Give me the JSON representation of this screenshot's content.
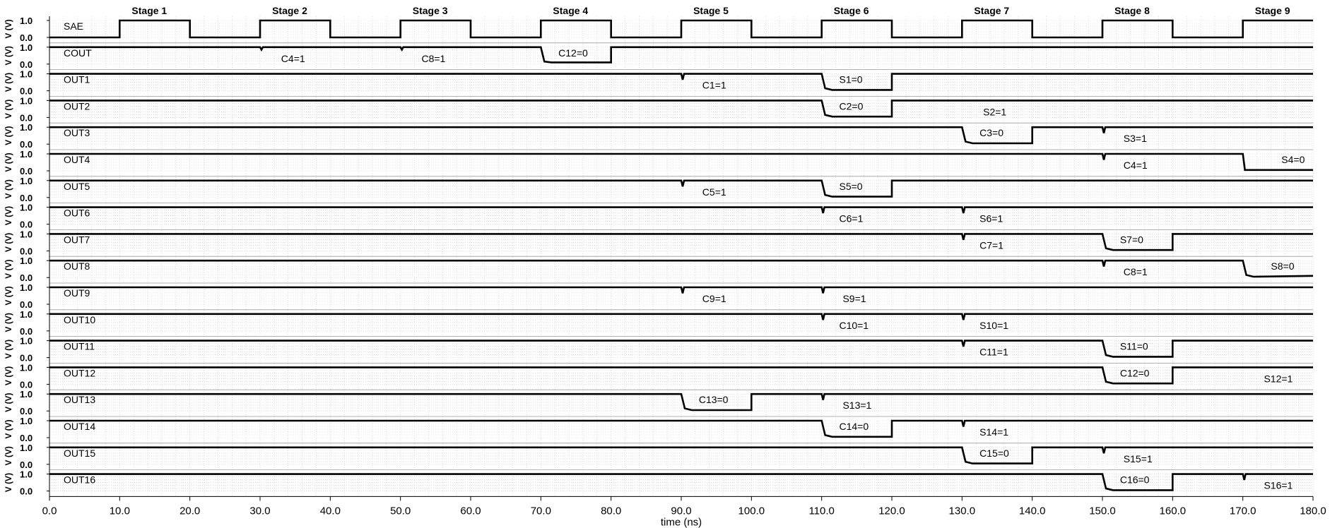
{
  "chart_data": {
    "type": "line",
    "xlabel": "time (ns)",
    "ylabel": "V (V)",
    "xlim": [
      0,
      180
    ],
    "x_ticks": [
      "0.0",
      "10.0",
      "20.0",
      "30.0",
      "40.0",
      "50.0",
      "60.0",
      "70.0",
      "80.0",
      "90.0",
      "100.0",
      "110.0",
      "120.0",
      "130.0",
      "140.0",
      "150.0",
      "160.0",
      "170.0",
      "180.0"
    ],
    "y_ticks": [
      "0.0",
      "1.0"
    ],
    "grid": true,
    "stages": [
      {
        "label": "Stage 1",
        "t": 10
      },
      {
        "label": "Stage 2",
        "t": 30
      },
      {
        "label": "Stage 3",
        "t": 50
      },
      {
        "label": "Stage 4",
        "t": 70
      },
      {
        "label": "Stage 5",
        "t": 90
      },
      {
        "label": "Stage 6",
        "t": 110
      },
      {
        "label": "Stage 7",
        "t": 130
      },
      {
        "label": "Stage 8",
        "t": 150
      },
      {
        "label": "Stage 9",
        "t": 170
      }
    ],
    "series": [
      {
        "name": "SAE",
        "x": [
          0,
          10,
          10,
          20,
          20,
          30,
          30,
          40,
          40,
          50,
          50,
          60,
          60,
          70,
          70,
          80,
          80,
          90,
          90,
          100,
          100,
          110,
          110,
          120,
          120,
          130,
          130,
          140,
          140,
          150,
          150,
          160,
          160,
          170,
          170,
          180
        ],
        "y": [
          0,
          0,
          1,
          1,
          0,
          0,
          1,
          1,
          0,
          0,
          1,
          1,
          0,
          0,
          1,
          1,
          0,
          0,
          1,
          1,
          0,
          0,
          1,
          1,
          0,
          0,
          1,
          1,
          0,
          0,
          1,
          1,
          0,
          0,
          1,
          1
        ],
        "labels": []
      },
      {
        "name": "COUT",
        "x": [
          0,
          30,
          30.2,
          30.4,
          50,
          50.2,
          50.4,
          70,
          70.5,
          71.5,
          80,
          80,
          180
        ],
        "y": [
          1,
          1,
          0.85,
          1,
          1,
          0.85,
          1,
          1,
          0.15,
          0.1,
          0.1,
          1,
          1
        ],
        "labels": [
          {
            "text": "C4=1",
            "t": 33
          },
          {
            "text": "C8=1",
            "t": 53
          },
          {
            "text": "C12=0",
            "t": 72.5,
            "pos": "mid"
          }
        ]
      },
      {
        "name": "OUT1",
        "x": [
          0,
          90,
          90.2,
          90.4,
          110,
          110.5,
          111.5,
          120,
          120,
          180
        ],
        "y": [
          1,
          1,
          0.65,
          1,
          1,
          0.15,
          0.05,
          0.05,
          1,
          1
        ],
        "labels": [
          {
            "text": "C1=1",
            "t": 93
          },
          {
            "text": "S1=0",
            "t": 112.5,
            "pos": "mid"
          }
        ]
      },
      {
        "name": "OUT2",
        "x": [
          0,
          110,
          110.5,
          111.5,
          120,
          120,
          180
        ],
        "y": [
          1,
          1,
          0.15,
          0.05,
          0.05,
          1,
          1
        ],
        "labels": [
          {
            "text": "C2=0",
            "t": 112.5,
            "pos": "mid"
          },
          {
            "text": "S2=1",
            "t": 133
          }
        ]
      },
      {
        "name": "OUT3",
        "x": [
          0,
          130,
          130.5,
          131.5,
          140,
          140,
          150,
          150.2,
          150.4,
          180
        ],
        "y": [
          1,
          1,
          0.15,
          0.05,
          0.05,
          1,
          1,
          0.65,
          1,
          1
        ],
        "labels": [
          {
            "text": "C3=0",
            "t": 132.5,
            "pos": "mid"
          },
          {
            "text": "S3=1",
            "t": 153
          }
        ]
      },
      {
        "name": "OUT4",
        "x": [
          0,
          150,
          150.2,
          150.4,
          170,
          170.3,
          180
        ],
        "y": [
          1,
          1,
          0.65,
          1,
          1,
          0.05,
          0.05
        ],
        "labels": [
          {
            "text": "C4=1",
            "t": 153
          },
          {
            "text": "S4=0",
            "t": 175.5,
            "pos": "mid"
          }
        ]
      },
      {
        "name": "OUT5",
        "x": [
          0,
          90,
          90.2,
          90.4,
          110,
          110.5,
          111.5,
          120,
          120,
          180
        ],
        "y": [
          1,
          1,
          0.65,
          1,
          1,
          0.15,
          0.05,
          0.05,
          1,
          1
        ],
        "labels": [
          {
            "text": "C5=1",
            "t": 93
          },
          {
            "text": "S5=0",
            "t": 112.5,
            "pos": "mid"
          }
        ]
      },
      {
        "name": "OUT6",
        "x": [
          0,
          110,
          110.2,
          110.4,
          130,
          130.2,
          130.4,
          180
        ],
        "y": [
          1,
          1,
          0.65,
          1,
          1,
          0.65,
          1,
          1
        ],
        "labels": [
          {
            "text": "C6=1",
            "t": 112.5
          },
          {
            "text": "S6=1",
            "t": 132.5
          }
        ]
      },
      {
        "name": "OUT7",
        "x": [
          0,
          130,
          130.2,
          130.4,
          150,
          150.5,
          151.5,
          160,
          160,
          180
        ],
        "y": [
          1,
          1,
          0.65,
          1,
          1,
          0.15,
          0.05,
          0.05,
          1,
          1
        ],
        "labels": [
          {
            "text": "C7=1",
            "t": 132.5
          },
          {
            "text": "S7=0",
            "t": 152.5,
            "pos": "mid"
          }
        ]
      },
      {
        "name": "OUT8",
        "x": [
          0,
          150,
          150.2,
          150.4,
          170,
          170.5,
          171.5,
          180
        ],
        "y": [
          1,
          1,
          0.65,
          1,
          1,
          0.15,
          0.05,
          0.1
        ],
        "labels": [
          {
            "text": "C8=1",
            "t": 153
          },
          {
            "text": "S8=0",
            "t": 174,
            "pos": "mid"
          }
        ]
      },
      {
        "name": "OUT9",
        "x": [
          0,
          90,
          90.2,
          90.4,
          110,
          110.2,
          110.4,
          180
        ],
        "y": [
          1,
          1,
          0.65,
          1,
          1,
          0.65,
          1,
          1
        ],
        "labels": [
          {
            "text": "C9=1",
            "t": 93
          },
          {
            "text": "S9=1",
            "t": 113
          }
        ]
      },
      {
        "name": "OUT10",
        "x": [
          0,
          110,
          110.2,
          110.4,
          130,
          130.2,
          130.4,
          180
        ],
        "y": [
          1,
          1,
          0.65,
          1,
          1,
          0.65,
          1,
          1
        ],
        "labels": [
          {
            "text": "C10=1",
            "t": 112.5
          },
          {
            "text": "S10=1",
            "t": 132.5
          }
        ]
      },
      {
        "name": "OUT11",
        "x": [
          0,
          130,
          130.2,
          130.4,
          150,
          150.5,
          151.5,
          160,
          160,
          180
        ],
        "y": [
          1,
          1,
          0.65,
          1,
          1,
          0.15,
          0.05,
          0.05,
          1,
          1
        ],
        "labels": [
          {
            "text": "C11=1",
            "t": 132.5
          },
          {
            "text": "S11=0",
            "t": 152.5,
            "pos": "mid"
          }
        ]
      },
      {
        "name": "OUT12",
        "x": [
          0,
          150,
          150.5,
          151.5,
          160,
          160,
          180
        ],
        "y": [
          1,
          1,
          0.15,
          0.05,
          0.05,
          1,
          1
        ],
        "labels": [
          {
            "text": "C12=0",
            "t": 152.5,
            "pos": "mid"
          },
          {
            "text": "S12=1",
            "t": 173
          }
        ]
      },
      {
        "name": "OUT13",
        "x": [
          0,
          90,
          90.5,
          91.5,
          100,
          100,
          110,
          110.2,
          110.4,
          180
        ],
        "y": [
          1,
          1,
          0.15,
          0.05,
          0.05,
          1,
          1,
          0.65,
          1,
          1
        ],
        "labels": [
          {
            "text": "C13=0",
            "t": 92.5,
            "pos": "mid"
          },
          {
            "text": "S13=1",
            "t": 113
          }
        ]
      },
      {
        "name": "OUT14",
        "x": [
          0,
          110,
          110.5,
          111.5,
          120,
          120,
          130,
          130.2,
          130.4,
          180
        ],
        "y": [
          1,
          1,
          0.15,
          0.05,
          0.05,
          1,
          1,
          0.65,
          1,
          1
        ],
        "labels": [
          {
            "text": "C14=0",
            "t": 112.5,
            "pos": "mid"
          },
          {
            "text": "S14=1",
            "t": 132.5
          }
        ]
      },
      {
        "name": "OUT15",
        "x": [
          0,
          130,
          130.5,
          131.5,
          140,
          140,
          150,
          150.2,
          150.4,
          180
        ],
        "y": [
          1,
          1,
          0.15,
          0.05,
          0.05,
          1,
          1,
          0.65,
          1,
          1
        ],
        "labels": [
          {
            "text": "C15=0",
            "t": 132.5,
            "pos": "mid"
          },
          {
            "text": "S15=1",
            "t": 153
          }
        ]
      },
      {
        "name": "OUT16",
        "x": [
          0,
          150,
          150.5,
          151.5,
          160,
          160,
          170,
          170.2,
          170.4,
          180
        ],
        "y": [
          1,
          1,
          0.15,
          0.05,
          0.05,
          1,
          1,
          0.65,
          1,
          1
        ],
        "labels": [
          {
            "text": "C16=0",
            "t": 152.5,
            "pos": "mid"
          },
          {
            "text": "S16=1",
            "t": 173
          }
        ]
      }
    ]
  }
}
